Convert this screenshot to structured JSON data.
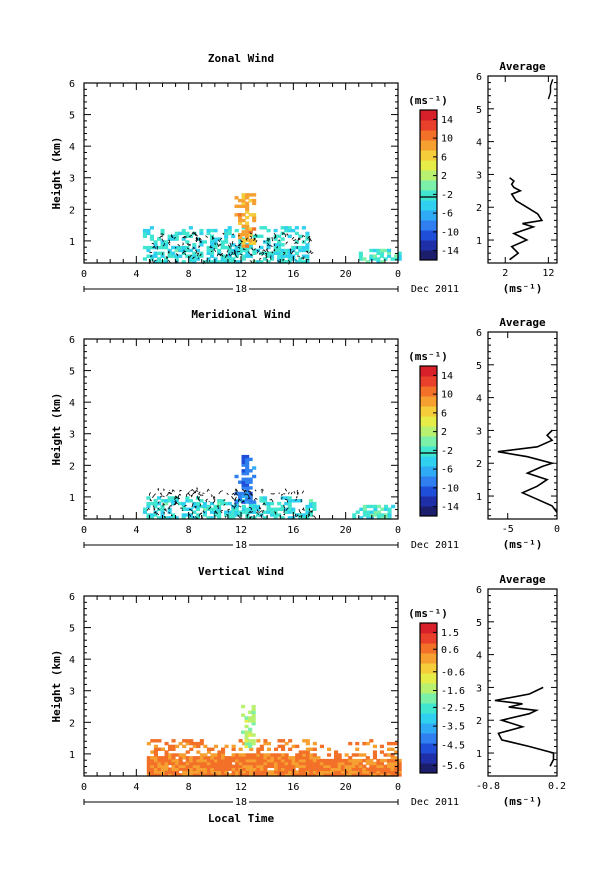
{
  "date_label": "Dec 2011",
  "panels": [
    {
      "title": "Zonal Wind",
      "ylabel": "Height (km)",
      "cbar_unit": "(ms⁻¹)",
      "cbar_ticks": [
        "14",
        "10",
        "6",
        "2",
        "-2",
        "-6",
        "-10",
        "-14"
      ],
      "avg_title": "Average",
      "avg_unit": "(ms⁻¹)",
      "avg_xticks": [
        "2",
        "12"
      ]
    },
    {
      "title": "Meridional Wind",
      "ylabel": "Height (km)",
      "cbar_unit": "(ms⁻¹)",
      "cbar_ticks": [
        "14",
        "10",
        "6",
        "2",
        "-2",
        "-6",
        "-10",
        "-14"
      ],
      "avg_title": "Average",
      "avg_unit": "(ms⁻¹)",
      "avg_xticks": [
        "-5",
        "0"
      ]
    },
    {
      "title": "Vertical Wind",
      "ylabel": "Height (km)",
      "cbar_unit": "(ms⁻¹)",
      "cbar_ticks": [
        "1.5",
        "0.6",
        "-0.6",
        "-1.6",
        "-2.5",
        "-3.5",
        "-4.5",
        "-5.6"
      ],
      "avg_title": "Average",
      "avg_unit": "(ms⁻¹)",
      "avg_xticks": [
        "-0.8",
        "0.2"
      ]
    }
  ],
  "bottom_xlabel": "Local Time",
  "chart_data": [
    {
      "type": "heatmap",
      "title": "Zonal Wind",
      "xlabel": "",
      "ylabel": "Height (km)",
      "xlim": [
        0,
        24
      ],
      "ylim": [
        0.3,
        6
      ],
      "xticks": [
        "0",
        "4",
        "8",
        "12",
        "16",
        "20",
        "0"
      ],
      "yticks": [
        "1",
        "2",
        "3",
        "4",
        "5",
        "6"
      ],
      "day_label": "18",
      "colorbar": {
        "unit": "(ms⁻¹)",
        "range": [
          -16,
          16
        ],
        "ticks": [
          14,
          10,
          6,
          2,
          -2,
          -6,
          -10,
          -14
        ]
      },
      "grid": false,
      "features": [
        {
          "desc": "dense weak values",
          "t_range": [
            4.5,
            17
          ],
          "h_range": [
            0.3,
            1.4
          ],
          "value": -3
        },
        {
          "desc": "strong eastward core",
          "t_range": [
            11.5,
            13
          ],
          "h_range": [
            0.8,
            2.5
          ],
          "value": 8
        },
        {
          "desc": "isolated cells",
          "t_range": [
            21,
            24
          ],
          "h_range": [
            0.3,
            0.7
          ],
          "value": -2
        }
      ],
      "average_profile": {
        "xlim": [
          -2,
          14
        ],
        "xticks": [
          "2",
          "12"
        ],
        "ylim": [
          0.3,
          6
        ],
        "x": [
          3.0,
          5.0,
          3.5,
          7.0,
          4.0,
          8.5,
          6.0,
          10.5,
          9.5,
          7.0,
          4.5,
          3.5,
          5.5,
          4.0,
          3.5,
          4.0,
          3.0
        ],
        "y": [
          0.4,
          0.6,
          0.8,
          1.0,
          1.2,
          1.4,
          1.5,
          1.6,
          1.8,
          2.0,
          2.2,
          2.4,
          2.5,
          2.6,
          2.7,
          2.8,
          2.9
        ],
        "x2": [
          12.0,
          12.5,
          12.5,
          13.0
        ],
        "y2": [
          5.3,
          5.5,
          5.7,
          5.9
        ]
      }
    },
    {
      "type": "heatmap",
      "title": "Meridional Wind",
      "xlabel": "",
      "ylabel": "Height (km)",
      "xlim": [
        0,
        24
      ],
      "ylim": [
        0.3,
        6
      ],
      "xticks": [
        "0",
        "4",
        "8",
        "12",
        "16",
        "20",
        "0"
      ],
      "yticks": [
        "1",
        "2",
        "3",
        "4",
        "5",
        "6"
      ],
      "day_label": "18",
      "colorbar": {
        "unit": "(ms⁻¹)",
        "range": [
          -16,
          16
        ],
        "ticks": [
          14,
          10,
          6,
          2,
          -2,
          -6,
          -10,
          -14
        ]
      },
      "grid": false,
      "features": [
        {
          "desc": "dense weak values",
          "t_range": [
            4.5,
            17.5
          ],
          "h_range": [
            0.3,
            1.0
          ],
          "value": -3
        },
        {
          "desc": "southward core",
          "t_range": [
            11.5,
            13
          ],
          "h_range": [
            0.8,
            2.3
          ],
          "value": -9
        },
        {
          "desc": "evening cells",
          "t_range": [
            20.5,
            24
          ],
          "h_range": [
            0.3,
            0.7
          ],
          "value": -2
        }
      ],
      "average_profile": {
        "xlim": [
          -7,
          0
        ],
        "xticks": [
          "-5",
          "0"
        ],
        "ylim": [
          0.3,
          6
        ],
        "x": [
          0.0,
          -0.5,
          -2.0,
          -3.5,
          -2.0,
          -1.0,
          -3.0,
          -1.5,
          -0.5,
          -3.0,
          -6.0,
          -2.0,
          -0.5,
          -1.0,
          -0.5
        ],
        "y": [
          0.5,
          0.7,
          0.9,
          1.1,
          1.3,
          1.5,
          1.7,
          1.9,
          2.0,
          2.2,
          2.35,
          2.5,
          2.7,
          2.85,
          3.0
        ],
        "x2": [],
        "y2": []
      }
    },
    {
      "type": "heatmap",
      "title": "Vertical Wind",
      "xlabel": "Local Time",
      "ylabel": "Height (km)",
      "xlim": [
        0,
        24
      ],
      "ylim": [
        0.3,
        6
      ],
      "xticks": [
        "0",
        "4",
        "8",
        "12",
        "16",
        "20",
        "0"
      ],
      "yticks": [
        "1",
        "2",
        "3",
        "4",
        "5",
        "6"
      ],
      "day_label": "18",
      "colorbar": {
        "unit": "(ms⁻¹)",
        "range": [
          -6,
          2
        ],
        "ticks": [
          1.5,
          0.6,
          -0.6,
          -1.6,
          -2.5,
          -3.5,
          -4.5,
          -5.6
        ]
      },
      "grid": false,
      "features": [
        {
          "desc": "broad positive region",
          "t_range": [
            4.8,
            24
          ],
          "h_range": [
            0.3,
            1.4
          ],
          "value": 0.5
        },
        {
          "desc": "updraft core",
          "t_range": [
            12,
            13
          ],
          "h_range": [
            1.2,
            2.5
          ],
          "value": -1.5
        }
      ],
      "average_profile": {
        "xlim": [
          -0.8,
          0.2
        ],
        "xticks": [
          "-0.8",
          "0.2"
        ],
        "ylim": [
          0.3,
          6
        ],
        "x": [
          0.1,
          0.15,
          0.15,
          -0.2,
          -0.6,
          -0.65,
          -0.3,
          -0.6,
          -0.2,
          -0.1,
          -0.5,
          -0.3,
          -0.7,
          -0.2,
          0.0
        ],
        "y": [
          0.6,
          0.8,
          1.0,
          1.2,
          1.4,
          1.6,
          1.8,
          2.0,
          2.2,
          2.3,
          2.4,
          2.5,
          2.6,
          2.8,
          3.0
        ],
        "x2": [],
        "y2": []
      }
    }
  ]
}
